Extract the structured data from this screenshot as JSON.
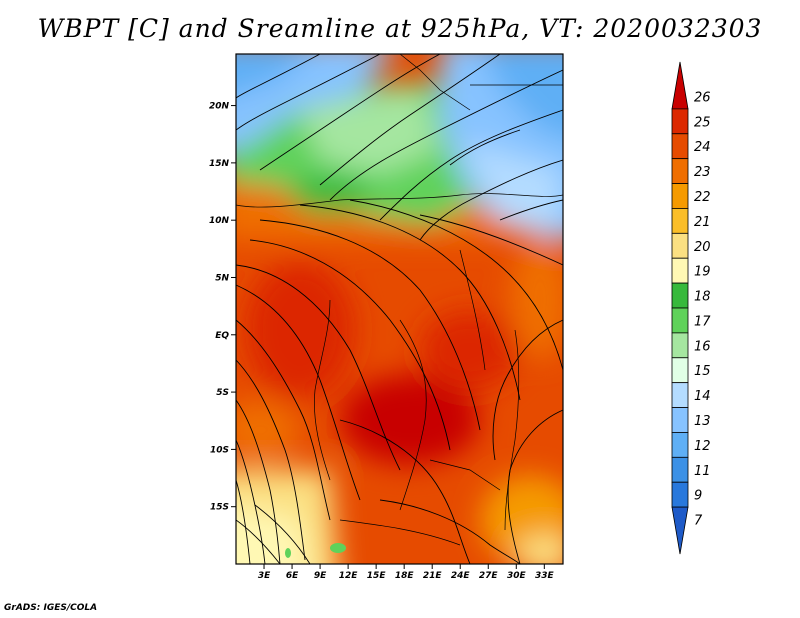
{
  "title": "WBPT [C] and Sreamline at 925hPa, VT: 2020032303",
  "footer": "GrADS: IGES/COLA",
  "map": {
    "lat_labels": [
      "20N",
      "15N",
      "10N",
      "5N",
      "EQ",
      "5S",
      "10S",
      "15S"
    ],
    "lat_values": [
      20,
      15,
      10,
      5,
      0,
      -5,
      -10,
      -15
    ],
    "lon_labels": [
      "3E",
      "6E",
      "9E",
      "12E",
      "15E",
      "18E",
      "21E",
      "24E",
      "27E",
      "30E",
      "33E"
    ],
    "lon_values": [
      3,
      6,
      9,
      12,
      15,
      18,
      21,
      24,
      27,
      30,
      33
    ],
    "lon_range": [
      0,
      35
    ],
    "lat_range": [
      -20,
      24.5
    ]
  },
  "colorbar": {
    "levels": [
      "26",
      "25",
      "24",
      "23",
      "22",
      "21",
      "20",
      "19",
      "18",
      "17",
      "16",
      "15",
      "14",
      "13",
      "12",
      "11",
      "9",
      "7"
    ],
    "colors": [
      "#c80000",
      "#dc2800",
      "#e64b00",
      "#ef6e00",
      "#f59a00",
      "#fbbe28",
      "#fbe082",
      "#fff8b4",
      "#37b93c",
      "#5fd25a",
      "#a5e6a0",
      "#e1ffe6",
      "#b4dcff",
      "#87c3ff",
      "#5faff5",
      "#3c91e6",
      "#2878dc",
      "#1e5ac8"
    ]
  }
}
